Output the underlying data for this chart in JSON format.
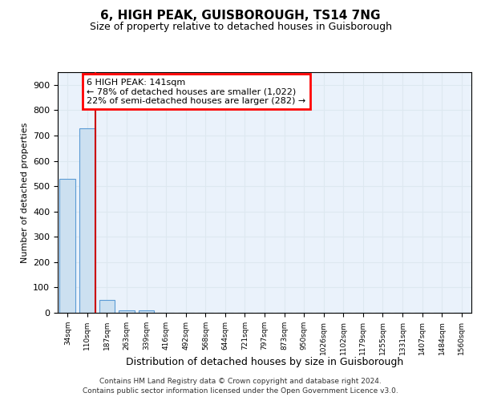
{
  "title": "6, HIGH PEAK, GUISBOROUGH, TS14 7NG",
  "subtitle": "Size of property relative to detached houses in Guisborough",
  "xlabel": "Distribution of detached houses by size in Guisborough",
  "ylabel": "Number of detached properties",
  "bin_labels": [
    "34sqm",
    "110sqm",
    "187sqm",
    "263sqm",
    "339sqm",
    "416sqm",
    "492sqm",
    "568sqm",
    "644sqm",
    "721sqm",
    "797sqm",
    "873sqm",
    "950sqm",
    "1026sqm",
    "1102sqm",
    "1179sqm",
    "1255sqm",
    "1331sqm",
    "1407sqm",
    "1484sqm",
    "1560sqm"
  ],
  "bar_values": [
    530,
    728,
    50,
    10,
    10,
    0,
    0,
    0,
    0,
    0,
    0,
    0,
    0,
    0,
    0,
    0,
    0,
    0,
    0,
    0,
    0
  ],
  "bar_color": "#cce0f0",
  "bar_edgecolor": "#5b9bd5",
  "property_label": "6 HIGH PEAK: 141sqm",
  "annotation_line1": "← 78% of detached houses are smaller (1,022)",
  "annotation_line2": "22% of semi-detached houses are larger (282) →",
  "vline_color": "#cc0000",
  "vline_x": 1.4,
  "ylim": [
    0,
    950
  ],
  "yticks": [
    0,
    100,
    200,
    300,
    400,
    500,
    600,
    700,
    800,
    900
  ],
  "grid_color": "#dde8f0",
  "bg_color": "#eaf2fb",
  "footer_line1": "Contains HM Land Registry data © Crown copyright and database right 2024.",
  "footer_line2": "Contains public sector information licensed under the Open Government Licence v3.0."
}
